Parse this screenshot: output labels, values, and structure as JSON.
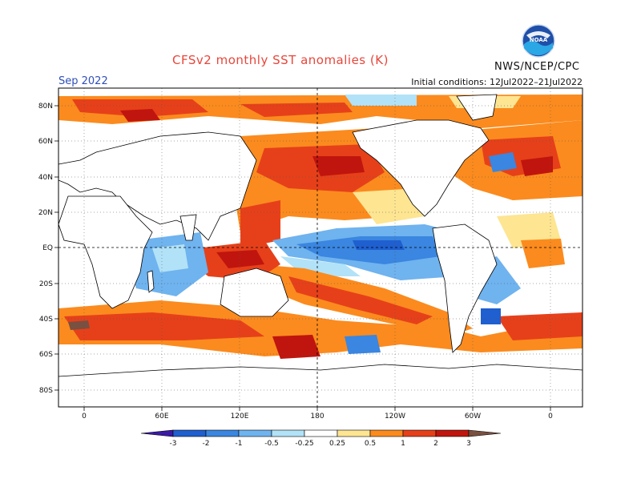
{
  "header": {
    "title": "CFSv2 monthly SST anomalies (K)",
    "month": "Sep 2022",
    "initial_conditions": "Initial conditions: 12Jul2022–21Jul2022",
    "agency": "NWS/NCEP/CPC",
    "logo_text": "NOAA"
  },
  "map": {
    "lat_labels": [
      "80N",
      "60N",
      "40N",
      "20N",
      "EQ",
      "20S",
      "40S",
      "60S",
      "80S"
    ],
    "lon_labels": [
      "0",
      "60E",
      "120E",
      "180",
      "120W",
      "60W",
      "0"
    ]
  },
  "colorbar": {
    "labels": [
      "-3",
      "-2",
      "-1",
      "-0.5",
      "-0.25",
      "0.25",
      "0.5",
      "1",
      "2",
      "3"
    ],
    "colors": [
      "#3a1aa6",
      "#1f5fcf",
      "#3a86e0",
      "#6fb3ef",
      "#b2e2f7",
      "#ffffff",
      "#fde592",
      "#fb8b1e",
      "#e6401a",
      "#c0150e",
      "#8a0a07",
      "#7a5040"
    ]
  }
}
